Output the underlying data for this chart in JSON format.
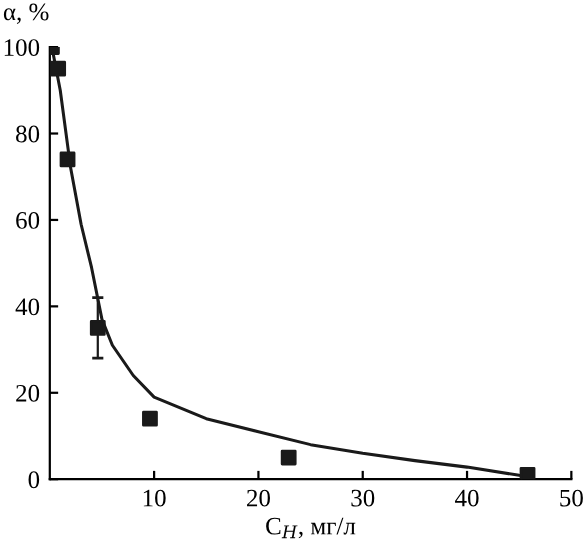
{
  "chart_data": {
    "type": "scatter",
    "xlabel": "C$_{Н}$, мг/л",
    "ylabel": "α, %",
    "xlim": [
      0,
      50
    ],
    "ylim": [
      0,
      100
    ],
    "xticks": [
      10,
      20,
      30,
      40,
      50
    ],
    "yticks": [
      0,
      20,
      40,
      60,
      80,
      100
    ],
    "grid": false,
    "marker": "square",
    "series": [
      {
        "color": "#1a1a1a",
        "x": [
          0.2,
          0.8,
          1.7,
          4.6,
          9.6,
          22.9,
          45.8
        ],
        "values": [
          100,
          95,
          74,
          35,
          14,
          5,
          1
        ],
        "errors": [
          null,
          null,
          null,
          [
            28,
            42
          ],
          null,
          null,
          null
        ]
      },
      {
        "type": "line",
        "color": "#1a1a1a",
        "marker": "none",
        "line_style": "solid",
        "x": [
          0.2,
          1,
          2,
          3,
          4,
          5,
          6,
          8,
          10,
          15,
          20,
          25,
          30,
          35,
          40,
          45,
          46
        ],
        "values": [
          100,
          90,
          72,
          59,
          49,
          37,
          31,
          24,
          19,
          14,
          11,
          8,
          6,
          4.3,
          2.8,
          0.9,
          0.6
        ]
      }
    ]
  }
}
